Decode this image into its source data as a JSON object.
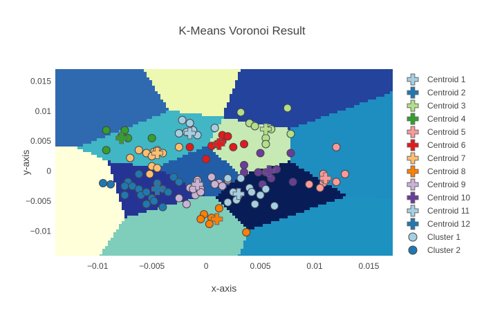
{
  "chart_data": {
    "type": "scatter",
    "title": "K-Means Voronoi Result",
    "xlabel": "x-axis",
    "ylabel": "y-axis",
    "xlim": [
      -0.0139,
      0.0172
    ],
    "ylim": [
      -0.0141,
      0.017
    ],
    "x_ticks": [
      -0.01,
      -0.005,
      0,
      0.005,
      0.01,
      0.015
    ],
    "x_tick_labels": [
      "−0.01",
      "−0.005",
      "0",
      "0.005",
      "0.01",
      "0.015"
    ],
    "y_ticks": [
      -0.01,
      -0.005,
      0,
      0.005,
      0.01,
      0.015
    ],
    "y_tick_labels": [
      "−0.01",
      "−0.005",
      "0",
      "0.005",
      "0.01",
      "0.015"
    ],
    "grid": false,
    "legend_position": "right",
    "region_colors": [
      "#24439c",
      "#2f6ab0",
      "#1e8dc0",
      "#41b6c4",
      "#7fcdbb",
      "#c7e9b4",
      "#edf8b1",
      "#ffffd9",
      "#081d58",
      "#253494",
      "#225ea8",
      "#1d91c0"
    ],
    "centroids": [
      {
        "name": "Centroid 1",
        "color": "#a6cee3",
        "x": -0.0015,
        "y": 0.0063
      },
      {
        "name": "Centroid 2",
        "color": "#1f78b4",
        "x": -0.0045,
        "y": -0.003
      },
      {
        "name": "Centroid 3",
        "color": "#b2df8a",
        "x": 0.0055,
        "y": 0.007
      },
      {
        "name": "Centroid 4",
        "color": "#33a02c",
        "x": -0.0078,
        "y": 0.0055
      },
      {
        "name": "Centroid 5",
        "color": "#fb9a99",
        "x": 0.011,
        "y": -0.0012
      },
      {
        "name": "Centroid 6",
        "color": "#e31a1c",
        "x": 0.0012,
        "y": 0.0045
      },
      {
        "name": "Centroid 7",
        "color": "#fdbf6f",
        "x": -0.0045,
        "y": 0.003
      },
      {
        "name": "Centroid 8",
        "color": "#ff7f00",
        "x": 0.001,
        "y": -0.008
      },
      {
        "name": "Centroid 9",
        "color": "#cab2d6",
        "x": -0.0008,
        "y": -0.0022
      },
      {
        "name": "Centroid 10",
        "color": "#6a3d9a",
        "x": 0.0058,
        "y": 0.0
      },
      {
        "name": "Centroid 11",
        "color": "#a6cee3",
        "x": 0.003,
        "y": -0.0038
      },
      {
        "name": "Centroid 12",
        "color": "#1f78b4",
        "x": -0.0045,
        "y": -0.003
      }
    ],
    "series": [
      {
        "name": "Cluster 1",
        "color": "#a6cee3",
        "points": [
          [
            -0.0022,
            0.0085
          ],
          [
            -0.0015,
            0.008
          ],
          [
            -0.0018,
            0.0065
          ],
          [
            -0.0025,
            0.0063
          ],
          [
            -0.0008,
            0.006
          ],
          [
            0.0008,
            0.0072
          ],
          [
            -0.0012,
            0.0068
          ]
        ]
      },
      {
        "name": "Cluster 2",
        "color": "#1f78b4",
        "points": [
          [
            -0.0095,
            -0.002
          ],
          [
            -0.0088,
            -0.0022
          ],
          [
            -0.0072,
            -0.0018
          ],
          [
            -0.0075,
            -0.0025
          ],
          [
            -0.0068,
            -0.0025
          ],
          [
            -0.0062,
            -0.003
          ],
          [
            -0.006,
            -0.004
          ],
          [
            -0.0055,
            -0.0035
          ],
          [
            -0.005,
            -0.0045
          ],
          [
            -0.0045,
            -0.0025
          ],
          [
            -0.004,
            -0.003
          ],
          [
            -0.0035,
            -0.0035
          ],
          [
            -0.0048,
            -0.005
          ],
          [
            -0.004,
            -0.006
          ],
          [
            -0.0075,
            -0.004
          ],
          [
            -0.0062,
            -0.0005
          ],
          [
            -0.003,
            -0.001
          ],
          [
            -0.0025,
            -0.0018
          ],
          [
            -0.0055,
            -0.0055
          ],
          [
            -0.0045,
            -0.002
          ]
        ]
      }
    ],
    "other_points": [
      {
        "color": "#b2df8a",
        "points": [
          [
            0.0032,
            0.0098
          ],
          [
            0.0075,
            0.0105
          ],
          [
            0.004,
            0.008
          ],
          [
            0.0045,
            0.0075
          ],
          [
            0.006,
            0.007
          ],
          [
            0.0078,
            0.0062
          ],
          [
            0.0055,
            0.0055
          ],
          [
            0.0055,
            0.0045
          ]
        ]
      },
      {
        "color": "#33a02c",
        "points": [
          [
            -0.0092,
            0.0068
          ],
          [
            -0.0075,
            0.0068
          ],
          [
            -0.0078,
            0.0058
          ],
          [
            -0.0072,
            0.0055
          ],
          [
            -0.005,
            0.0055
          ],
          [
            -0.0092,
            0.0035
          ]
        ]
      },
      {
        "color": "#fb9a99",
        "points": [
          [
            0.012,
            0.004
          ],
          [
            0.0108,
            -0.0005
          ],
          [
            0.0128,
            -0.0005
          ],
          [
            0.012,
            -0.0018
          ],
          [
            0.0108,
            -0.002
          ],
          [
            0.0105,
            -0.0028
          ],
          [
            0.0095,
            -0.0022
          ],
          [
            0.011,
            -0.0015
          ]
        ]
      },
      {
        "color": "#e31a1c",
        "points": [
          [
            -0.0015,
            0.004
          ],
          [
            0.0015,
            0.005
          ],
          [
            0.0025,
            0.004
          ],
          [
            0.0035,
            0.0045
          ],
          [
            0.0015,
            0.006
          ],
          [
            0.002,
            0.0058
          ],
          [
            0.0005,
            0.0042
          ],
          [
            0.001,
            0.0045
          ],
          [
            0.0,
            0.002
          ]
        ]
      },
      {
        "color": "#fdbf6f",
        "points": [
          [
            -0.0062,
            0.0035
          ],
          [
            -0.0055,
            0.003
          ],
          [
            -0.0048,
            0.0032
          ],
          [
            -0.0045,
            0.0035
          ],
          [
            -0.004,
            0.003
          ],
          [
            -0.005,
            0.0025
          ],
          [
            -0.007,
            0.0022
          ],
          [
            -0.0025,
            0.004
          ],
          [
            -0.005,
            0.0008
          ],
          [
            -0.0045,
            0.0005
          ],
          [
            -0.0052,
            -0.0005
          ]
        ]
      },
      {
        "color": "#ff7f00",
        "points": [
          [
            0.0012,
            -0.0062
          ],
          [
            -0.0002,
            -0.0072
          ],
          [
            0.0005,
            -0.0078
          ],
          [
            -0.0005,
            -0.008
          ],
          [
            0.0003,
            -0.0088
          ],
          [
            0.0037,
            -0.0102
          ]
        ]
      },
      {
        "color": "#cab2d6",
        "points": [
          [
            -0.0015,
            -0.0028
          ],
          [
            -0.0008,
            -0.0015
          ],
          [
            0.0005,
            -0.001
          ],
          [
            0.0012,
            -0.002
          ],
          [
            0.002,
            -0.0015
          ],
          [
            -0.0005,
            -0.003
          ],
          [
            -0.001,
            -0.004
          ],
          [
            -0.0025,
            -0.0045
          ],
          [
            -0.0018,
            -0.0055
          ],
          [
            -0.0012,
            -0.003
          ],
          [
            0.0015,
            -0.0025
          ],
          [
            0.0008,
            -0.0022
          ],
          [
            -0.0005,
            -0.0035
          ]
        ]
      },
      {
        "color": "#6a3d9a",
        "points": [
          [
            0.0035,
            0.001
          ],
          [
            0.005,
            0.003
          ],
          [
            0.0078,
            0.003
          ],
          [
            0.0065,
            0.0003
          ],
          [
            0.0055,
            -0.0002
          ],
          [
            0.0048,
            -0.0002
          ],
          [
            0.0035,
            -0.0002
          ],
          [
            0.0052,
            -0.0022
          ],
          [
            0.008,
            -0.0018
          ],
          [
            0.006,
            -0.0012
          ]
        ]
      },
      {
        "color": "#a6cee3",
        "points": [
          [
            0.002,
            -0.0012
          ],
          [
            0.0032,
            -0.0012
          ],
          [
            0.004,
            -0.0028
          ],
          [
            0.0025,
            -0.0035
          ],
          [
            0.003,
            -0.004
          ],
          [
            0.0028,
            -0.0048
          ],
          [
            0.0042,
            -0.0035
          ],
          [
            0.0055,
            -0.003
          ],
          [
            0.005,
            -0.004
          ],
          [
            0.0045,
            -0.0055
          ],
          [
            0.0063,
            -0.0058
          ],
          [
            0.002,
            -0.0052
          ]
        ]
      }
    ]
  }
}
